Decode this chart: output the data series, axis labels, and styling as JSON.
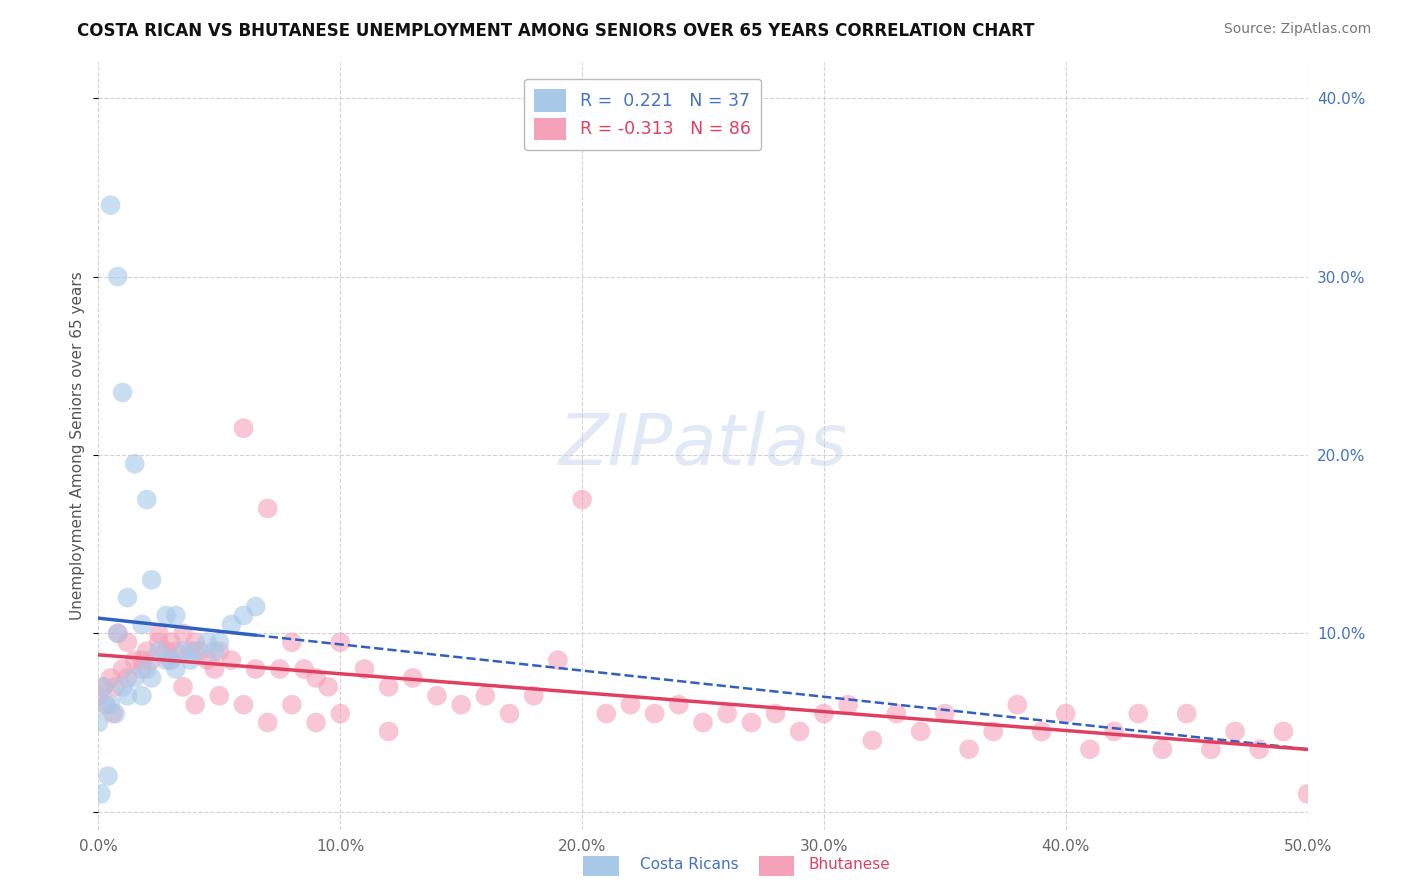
{
  "title": "COSTA RICAN VS BHUTANESE UNEMPLOYMENT AMONG SENIORS OVER 65 YEARS CORRELATION CHART",
  "source": "Source: ZipAtlas.com",
  "ylabel": "Unemployment Among Seniors over 65 years",
  "xlim": [
    0.0,
    0.5
  ],
  "ylim": [
    -0.01,
    0.42
  ],
  "xticks": [
    0.0,
    0.1,
    0.2,
    0.3,
    0.4,
    0.5
  ],
  "xtick_labels": [
    "0.0%",
    "10.0%",
    "20.0%",
    "30.0%",
    "40.0%",
    "50.0%"
  ],
  "yticks": [
    0.0,
    0.1,
    0.2,
    0.3,
    0.4
  ],
  "ytick_labels_right": [
    "",
    "10.0%",
    "20.0%",
    "30.0%",
    "40.0%"
  ],
  "costa_rican_R": 0.221,
  "costa_rican_N": 37,
  "bhutanese_R": -0.313,
  "bhutanese_N": 86,
  "costa_rican_color": "#a8c8e8",
  "bhutanese_color": "#f4a0b8",
  "trend_costa_rican_color": "#3060c0",
  "trend_bhutanese_color": "#e04060",
  "background_color": "#ffffff",
  "grid_color": "#c8c8c8",
  "watermark_text": "ZIPatlas",
  "legend_label_cr": "R =  0.221   N = 37",
  "legend_label_bh": "R = -0.313   N = 86",
  "costa_rican_x": [
    0.0,
    0.005,
    0.007,
    0.01,
    0.012,
    0.015,
    0.018,
    0.02,
    0.022,
    0.025,
    0.028,
    0.03,
    0.032,
    0.035,
    0.038,
    0.04,
    0.045,
    0.048,
    0.05,
    0.055,
    0.06,
    0.065,
    0.005,
    0.008,
    0.01,
    0.015,
    0.02,
    0.008,
    0.012,
    0.018,
    0.022,
    0.028,
    0.032,
    0.002,
    0.003,
    0.001,
    0.004
  ],
  "costa_rican_y": [
    0.05,
    0.06,
    0.055,
    0.07,
    0.065,
    0.075,
    0.065,
    0.08,
    0.075,
    0.09,
    0.085,
    0.085,
    0.08,
    0.09,
    0.085,
    0.09,
    0.095,
    0.09,
    0.095,
    0.105,
    0.11,
    0.115,
    0.34,
    0.3,
    0.235,
    0.195,
    0.175,
    0.1,
    0.12,
    0.105,
    0.13,
    0.11,
    0.11,
    0.07,
    0.06,
    0.01,
    0.02
  ],
  "bhutanese_x": [
    0.0,
    0.002,
    0.005,
    0.007,
    0.01,
    0.012,
    0.015,
    0.018,
    0.02,
    0.022,
    0.025,
    0.028,
    0.03,
    0.032,
    0.035,
    0.038,
    0.04,
    0.042,
    0.045,
    0.048,
    0.05,
    0.055,
    0.06,
    0.065,
    0.07,
    0.075,
    0.08,
    0.085,
    0.09,
    0.095,
    0.1,
    0.11,
    0.12,
    0.13,
    0.14,
    0.15,
    0.16,
    0.17,
    0.18,
    0.19,
    0.2,
    0.21,
    0.22,
    0.23,
    0.24,
    0.25,
    0.26,
    0.27,
    0.28,
    0.29,
    0.3,
    0.31,
    0.32,
    0.33,
    0.34,
    0.35,
    0.36,
    0.37,
    0.38,
    0.39,
    0.4,
    0.41,
    0.42,
    0.43,
    0.44,
    0.45,
    0.46,
    0.47,
    0.48,
    0.49,
    0.5,
    0.008,
    0.012,
    0.018,
    0.025,
    0.03,
    0.035,
    0.04,
    0.05,
    0.06,
    0.07,
    0.08,
    0.09,
    0.1,
    0.12,
    0.003,
    0.006
  ],
  "bhutanese_y": [
    0.065,
    0.07,
    0.075,
    0.07,
    0.08,
    0.075,
    0.085,
    0.08,
    0.09,
    0.085,
    0.095,
    0.09,
    0.095,
    0.09,
    0.1,
    0.09,
    0.095,
    0.09,
    0.085,
    0.08,
    0.09,
    0.085,
    0.215,
    0.08,
    0.17,
    0.08,
    0.095,
    0.08,
    0.075,
    0.07,
    0.095,
    0.08,
    0.07,
    0.075,
    0.065,
    0.06,
    0.065,
    0.055,
    0.065,
    0.085,
    0.175,
    0.055,
    0.06,
    0.055,
    0.06,
    0.05,
    0.055,
    0.05,
    0.055,
    0.045,
    0.055,
    0.06,
    0.04,
    0.055,
    0.045,
    0.055,
    0.035,
    0.045,
    0.06,
    0.045,
    0.055,
    0.035,
    0.045,
    0.055,
    0.035,
    0.055,
    0.035,
    0.045,
    0.035,
    0.045,
    0.01,
    0.1,
    0.095,
    0.085,
    0.1,
    0.085,
    0.07,
    0.06,
    0.065,
    0.06,
    0.05,
    0.06,
    0.05,
    0.055,
    0.045,
    0.06,
    0.055
  ]
}
